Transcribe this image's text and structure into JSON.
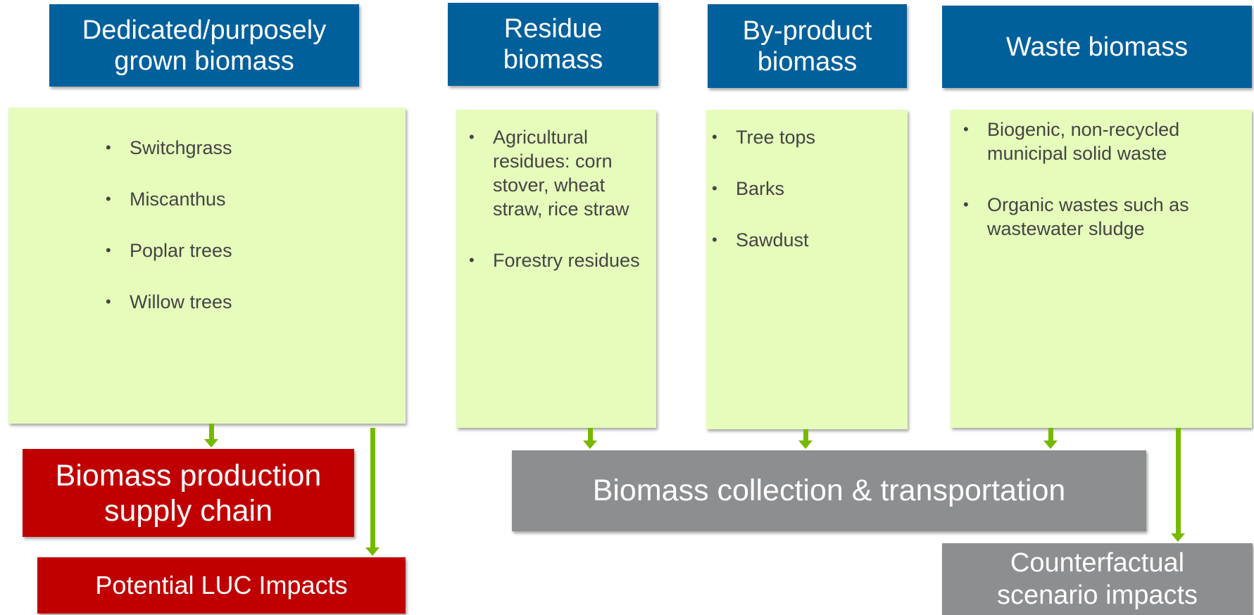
{
  "categories": [
    {
      "title": "Dedicated/purposely grown biomass",
      "items": [
        "Switchgrass",
        "Miscanthus",
        "Poplar trees",
        "Willow trees"
      ]
    },
    {
      "title": "Residue biomass",
      "items": [
        "Agricultural residues: corn stover, wheat straw, rice straw",
        "Forestry residues"
      ]
    },
    {
      "title": "By-product biomass",
      "items": [
        "Tree tops",
        "Barks",
        "Sawdust"
      ]
    },
    {
      "title": "Waste biomass",
      "items": [
        "Biogenic, non-recycled municipal solid waste",
        "Organic wastes such as wastewater sludge"
      ]
    }
  ],
  "outputs": {
    "production": "Biomass production supply chain",
    "luc": "Potential LUC Impacts",
    "collection": "Biomass collection & transportation",
    "counterfactual": "Counterfactual scenario impacts"
  }
}
